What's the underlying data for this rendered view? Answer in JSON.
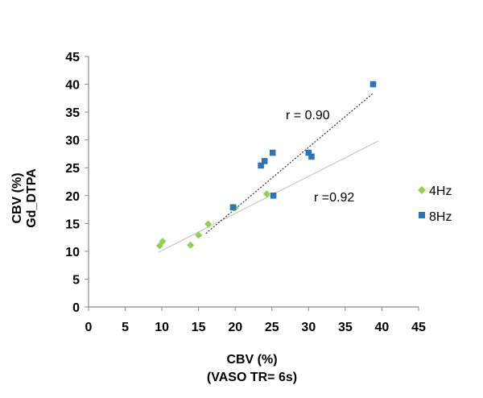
{
  "chart_data": {
    "type": "scatter",
    "xlabel": "CBV (%)",
    "xlabel_line2": "(VASO TR= 6s)",
    "ylabel": "CBV (%)",
    "ylabel_line2": "Gd_DTPA",
    "xlim": [
      0,
      45
    ],
    "ylim": [
      0,
      45
    ],
    "xticks": [
      0,
      5,
      10,
      15,
      20,
      25,
      30,
      35,
      40,
      45
    ],
    "yticks": [
      0,
      5,
      10,
      15,
      20,
      25,
      30,
      35,
      40,
      45
    ],
    "grid": false,
    "legend_position": "right",
    "series": [
      {
        "name": "4Hz",
        "marker": "diamond",
        "color": "#92d050",
        "points": [
          [
            9.7,
            11.0
          ],
          [
            10.1,
            11.8
          ],
          [
            13.9,
            11.1
          ],
          [
            15.0,
            12.9
          ],
          [
            16.3,
            14.9
          ],
          [
            20.0,
            17.8
          ],
          [
            24.3,
            20.3
          ]
        ],
        "fit": {
          "from": [
            9.5,
            9.8
          ],
          "to": [
            39.5,
            29.8
          ],
          "color": "#c8c8c8",
          "style": "solid"
        },
        "annotation": "r =0.92"
      },
      {
        "name": "8Hz",
        "marker": "square",
        "color": "#2e75b6",
        "points": [
          [
            19.7,
            17.9
          ],
          [
            23.5,
            25.4
          ],
          [
            24.0,
            26.2
          ],
          [
            25.1,
            27.7
          ],
          [
            25.2,
            20.0
          ],
          [
            30.0,
            27.7
          ],
          [
            30.4,
            27.0
          ],
          [
            38.8,
            40.0
          ]
        ],
        "fit": {
          "from": [
            16.0,
            13.2
          ],
          "to": [
            38.8,
            38.4
          ],
          "color": "#333333",
          "style": "dotted"
        },
        "annotation": "r = 0.90"
      }
    ]
  }
}
